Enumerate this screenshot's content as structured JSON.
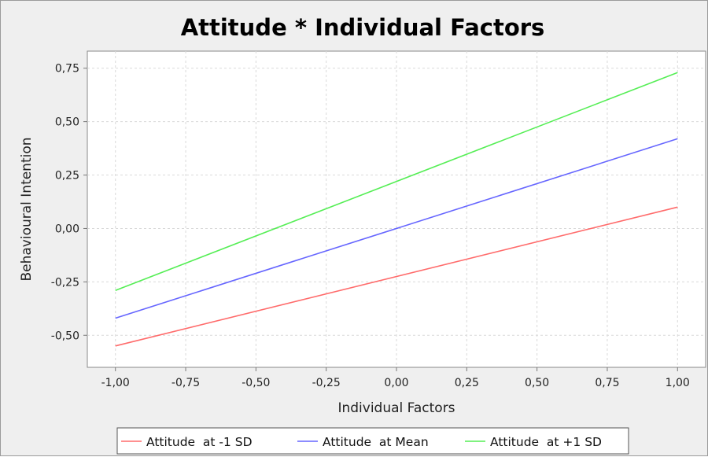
{
  "chart_data": {
    "type": "line",
    "title": "Attitude * Individual Factors",
    "xlabel": "Individual Factors",
    "ylabel": "Behavioural Intention",
    "xlim": [
      -1.1,
      1.1
    ],
    "ylim": [
      -0.65,
      0.83
    ],
    "x_ticks": [
      -1.0,
      -0.75,
      -0.5,
      -0.25,
      0.0,
      0.25,
      0.5,
      0.75,
      1.0
    ],
    "x_tick_labels": [
      "-1,00",
      "-0,75",
      "-0,50",
      "-0,25",
      "0,00",
      "0,25",
      "0,50",
      "0,75",
      "1,00"
    ],
    "y_ticks": [
      -0.5,
      -0.25,
      0.0,
      0.25,
      0.5,
      0.75
    ],
    "y_tick_labels": [
      "-0,50",
      "-0,25",
      "0,00",
      "0,25",
      "0,50",
      "0,75"
    ],
    "grid": true,
    "legend_position": "bottom",
    "series": [
      {
        "name": "Attitude  at -1 SD",
        "color": "#ff6b6b",
        "x": [
          -1.0,
          1.0
        ],
        "y": [
          -0.55,
          0.1
        ]
      },
      {
        "name": "Attitude  at Mean",
        "color": "#6666ff",
        "x": [
          -1.0,
          1.0
        ],
        "y": [
          -0.42,
          0.42
        ]
      },
      {
        "name": "Attitude  at +1 SD",
        "color": "#55ee55",
        "x": [
          -1.0,
          1.0
        ],
        "y": [
          -0.29,
          0.73
        ]
      }
    ]
  }
}
